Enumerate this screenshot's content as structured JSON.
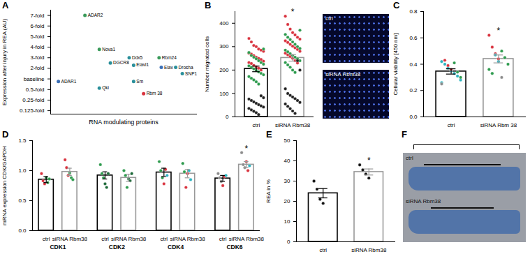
{
  "chart_data": [
    {
      "type": "scatter",
      "title": "A",
      "xlabel": "RNA modulating proteins",
      "ylabel": "Expression after injury in REA (AU)",
      "labels": [
        "ADAR1",
        "ADAR2",
        "Nova1",
        "Qki",
        "DGCR8",
        "Ddx5",
        "Elavl1",
        "Sm",
        "Rbm 38",
        "Rbm24",
        "Elav",
        "Drosha",
        "SNP1"
      ],
      "x": [
        14,
        62,
        88,
        88,
        108,
        142,
        150,
        150,
        168,
        196,
        200,
        226,
        238
      ],
      "values": [
        0.85,
        7,
        3.8,
        0.55,
        2.5,
        3,
        2.3,
        0.85,
        0.38,
        3,
        2.1,
        2.1,
        1.5
      ],
      "colors": [
        "#3b6fb6",
        "#3a9a5a",
        "#3a9a5a",
        "#2a8f9a",
        "#2a8f9a",
        "#2a8f9a",
        "#2a8f9a",
        "#2a8f9a",
        "#d9333f",
        "#3a9a5a",
        "#3b6fb6",
        "#2a8f9a",
        "#2a8f9a"
      ],
      "xlim": [
        0,
        265
      ],
      "ylim": [
        0.1,
        7.5
      ],
      "yticks": [
        {
          "value": 0.125,
          "label": "0.125-fold"
        },
        {
          "value": 0.25,
          "label": "0.25-fold"
        },
        {
          "value": 0.5,
          "label": "0.5-fold"
        },
        {
          "value": 1,
          "label": "baseline"
        },
        {
          "value": 2,
          "label": "2-fold"
        },
        {
          "value": 3,
          "label": "3-fold"
        },
        {
          "value": 4,
          "label": "4-fold"
        },
        {
          "value": 5,
          "label": "5-fold"
        },
        {
          "value": 6,
          "label": "6-fold"
        },
        {
          "value": 7,
          "label": "7-fold"
        }
      ],
      "tick_labels": "y"
    },
    {
      "type": "bar",
      "title": "B",
      "ylabel": "Number migrated cells",
      "categories": [
        "ctrl",
        "siRNA Rbm38"
      ],
      "values": [
        205,
        252
      ],
      "errors": [
        12,
        14
      ],
      "colors": [
        "#000000",
        "#999999"
      ],
      "points": [
        [
          {
            "color": "#d9333f",
            "values": [
              335,
              320,
              305,
              300,
              290,
              285,
              280,
              272,
              268,
              262,
              255,
              250,
              245,
              238,
              232,
              228,
              220,
              214,
              208,
              200
            ]
          },
          {
            "color": "#2e9b4e",
            "values": [
              290,
              275,
              262,
              255,
              248,
              240,
              232,
              225,
              218,
              212,
              205,
              198,
              192,
              186,
              180,
              172,
              165,
              158,
              150,
              140
            ]
          },
          {
            "color": "#222222",
            "values": [
              90,
              82,
              76,
              70,
              64,
              58,
              52,
              47,
              42,
              36,
              30,
              24,
              18,
              10
            ]
          }
        ],
        [
          {
            "color": "#d9333f",
            "values": [
              430,
              395,
              375,
              360,
              350,
              340,
              332,
              325,
              318,
              310,
              302,
              295,
              288,
              280,
              272,
              265,
              258,
              250,
              240,
              230
            ]
          },
          {
            "color": "#2e9b4e",
            "values": [
              370,
              352,
              340,
              330,
              320,
              310,
              300,
              292,
              285,
              278,
              270,
              262,
              255,
              248,
              240,
              232,
              222,
              212,
              200,
              190
            ]
          },
          {
            "color": "#222222",
            "values": [
              240,
              200,
              120,
              100,
              92,
              85,
              78,
              70,
              62,
              55,
              45,
              35,
              25,
              15
            ]
          }
        ]
      ],
      "ylim": [
        0,
        450
      ],
      "yticks": [
        0,
        100,
        200,
        300,
        400
      ],
      "annotations": [
        {
          "text": "*",
          "category": "siRNA Rbm38"
        }
      ],
      "images": [
        "ctrl",
        "siRNA Rbm38"
      ]
    },
    {
      "type": "bar",
      "title": "C",
      "ylabel": "Cellular viability [450 nm]",
      "categories": [
        "ctrl",
        "siRNA Rbm 38"
      ],
      "values": [
        0.345,
        0.44
      ],
      "errors": [
        0.02,
        0.03
      ],
      "colors": [
        "#000000",
        "#999999"
      ],
      "points": [
        [
          {
            "color": "#2bb3c0",
            "values": [
              0.42,
              0.4,
              0.37,
              0.35,
              0.33,
              0.31,
              0.28,
              0.26
            ]
          },
          {
            "color": "#d9333f",
            "values": [
              0.43,
              0.39,
              0.36
            ]
          },
          {
            "color": "#2e9b4e",
            "values": [
              0.41,
              0.34,
              0.3
            ]
          },
          {
            "color": "#8c8c8c",
            "values": [
              0.25
            ]
          }
        ],
        [
          {
            "color": "#d9333f",
            "values": [
              0.62,
              0.53,
              0.48,
              0.44
            ]
          },
          {
            "color": "#2e9b4e",
            "values": [
              0.5,
              0.45,
              0.4,
              0.36,
              0.33
            ]
          },
          {
            "color": "#2bb3c0",
            "values": [
              0.47,
              0.42
            ]
          },
          {
            "color": "#8c8c8c",
            "values": [
              0.3
            ]
          }
        ]
      ],
      "ylim": [
        0,
        0.8
      ],
      "yticks": [
        {
          "value": 0,
          "label": "0.0"
        },
        0.2,
        0.4,
        0.6,
        0.8
      ],
      "annotations": [
        {
          "text": "*",
          "category": "siRNA Rbm 38"
        }
      ]
    },
    {
      "type": "bar",
      "title": "D",
      "ylabel": "mRNA expression CDK/GAPDH",
      "categories": [
        "CDK1",
        "CDK2",
        "CDK4",
        "CDK6"
      ],
      "series": [
        {
          "name": "ctrl",
          "color": "#000000",
          "values": [
            0.85,
            0.92,
            0.97,
            0.87
          ],
          "errors": [
            0.05,
            0.06,
            0.07,
            0.05
          ],
          "points": [
            [
              {
                "color": "#d9333f",
                "values": [
                  0.95,
                  0.83,
                  0.78
                ]
              },
              {
                "color": "#2e9b4e",
                "values": [
                  0.88,
                  0.8,
                  0.86
                ]
              }
            ],
            [
              {
                "color": "#2e9b4e",
                "values": [
                  1.1,
                  0.95,
                  0.88
                ]
              },
              {
                "color": "#1e6b3a",
                "values": [
                  0.78,
                  0.72,
                  0.95
                ]
              }
            ],
            [
              {
                "color": "#2e9b4e",
                "values": [
                  1.15,
                  1.0,
                  0.88
                ]
              },
              {
                "color": "#d9333f",
                "values": [
                  0.78,
                  1.02
                ]
              },
              {
                "color": "#2bb3c0",
                "values": [
                  0.92
                ]
              }
            ],
            [
              {
                "color": "#8c8c8c",
                "values": [
                  0.95,
                  0.88,
                  0.82
                ]
              },
              {
                "color": "#d9333f",
                "values": [
                  0.75,
                  0.9
                ]
              },
              {
                "color": "#2bb3c0",
                "values": [
                  0.92
                ]
              }
            ]
          ]
        },
        {
          "name": "siRNA Rbm38",
          "color": "#999999",
          "values": [
            0.98,
            0.88,
            0.95,
            1.1
          ],
          "errors": [
            0.06,
            0.06,
            0.07,
            0.05
          ],
          "points": [
            [
              {
                "color": "#d9333f",
                "values": [
                  1.18,
                  1.05,
                  0.92
                ]
              },
              {
                "color": "#2e9b4e",
                "values": [
                  0.96,
                  0.88,
                  0.85
                ]
              }
            ],
            [
              {
                "color": "#2e9b4e",
                "values": [
                  1.0,
                  0.92,
                  0.72
                ]
              },
              {
                "color": "#1e6b3a",
                "values": [
                  0.86,
                  0.83,
                  0.95
                ]
              }
            ],
            [
              {
                "color": "#2e9b4e",
                "values": [
                  1.12,
                  0.98
                ]
              },
              {
                "color": "#d9333f",
                "values": [
                  0.72,
                  0.95
                ]
              },
              {
                "color": "#2bb3c0",
                "values": [
                  1.0,
                  0.85
                ]
              }
            ],
            [
              {
                "color": "#8c8c8c",
                "values": [
                  1.3,
                  1.1,
                  1.05
                ]
              },
              {
                "color": "#d9333f",
                "values": [
                  1.15,
                  1.0
                ]
              },
              {
                "color": "#2bb3c0",
                "values": [
                  1.08
                ]
              }
            ]
          ]
        }
      ],
      "ylim": [
        0,
        1.5
      ],
      "yticks": [
        {
          "value": 0,
          "label": "0.0"
        },
        0.5,
        {
          "value": 1,
          "label": "1.0"
        },
        1.5
      ],
      "annotations": [
        {
          "text": "*",
          "category": "CDK6",
          "series": "siRNA Rbm38"
        }
      ]
    },
    {
      "type": "bar",
      "title": "E",
      "ylabel": "REA in %",
      "categories": [
        "ctrl",
        "siRNA Rbm38"
      ],
      "values": [
        24,
        34.5
      ],
      "errors": [
        2.3,
        1.5
      ],
      "colors": [
        "#000000",
        "#999999"
      ],
      "points": [
        [
          {
            "color": "#111111",
            "values": [
              30,
              26,
              21,
              19
            ]
          }
        ],
        [
          {
            "color": "#111111",
            "values": [
              38,
              35.5,
              33.5,
              31.5
            ]
          }
        ]
      ],
      "ylim": [
        0,
        50
      ],
      "yticks": [
        0,
        10,
        20,
        30,
        40,
        50
      ],
      "annotations": [
        {
          "text": "*",
          "category": "siRNA Rbm38"
        }
      ]
    },
    {
      "type": "image",
      "title": "F",
      "images": [
        "ctrl",
        "siRNA Rbm38"
      ]
    }
  ]
}
